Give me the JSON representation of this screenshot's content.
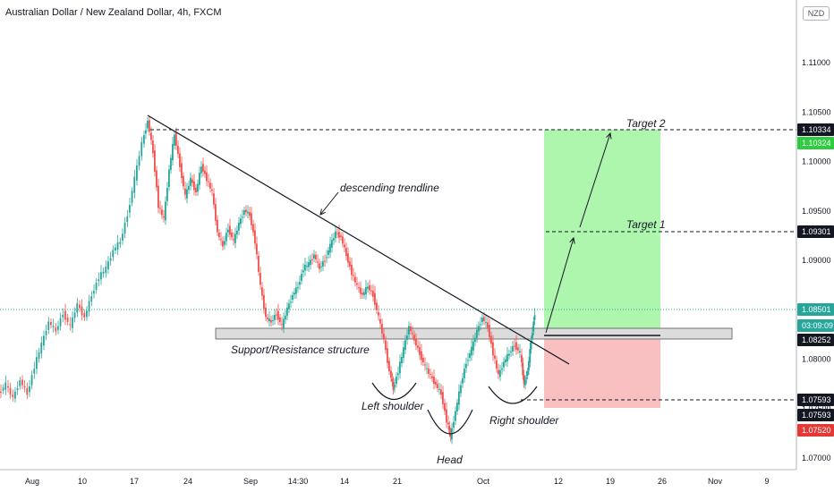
{
  "chart_data": {
    "type": "candlestick",
    "title": "Australian Dollar / New Zealand Dollar, 4h, FXCM",
    "currency": "NZD",
    "y_ticks": [
      "1.11000",
      "1.10500",
      "1.10000",
      "1.09500",
      "1.09000",
      "1.08500",
      "1.08000",
      "1.07500",
      "1.07000"
    ],
    "y_tick_values": [
      1.11,
      1.105,
      1.1,
      1.095,
      1.09,
      1.085,
      1.08,
      1.075,
      1.07
    ],
    "x_ticks": [
      "Aug",
      "10",
      "17",
      "24",
      "Sep",
      "14:30",
      "14",
      "21",
      "Oct",
      "12",
      "19",
      "26",
      "Nov",
      "9"
    ],
    "price_tags": [
      {
        "label": "1.10334",
        "bg": "#131722",
        "fg": "#ffffff"
      },
      {
        "label": "1.10324",
        "bg": "#2ecc40",
        "fg": "#ffffff"
      },
      {
        "label": "1.09301",
        "bg": "#131722",
        "fg": "#ffffff"
      },
      {
        "label": "1.08501",
        "bg": "#26a69a",
        "fg": "#ffffff"
      },
      {
        "label": "03:09:09",
        "bg": "#26a69a",
        "fg": "#ffffff"
      },
      {
        "label": "1.08252",
        "bg": "#131722",
        "fg": "#ffffff"
      },
      {
        "label": "1.07593",
        "bg": "#131722",
        "fg": "#ffffff"
      },
      {
        "label": "1.07593",
        "bg": "#131722",
        "fg": "#ffffff"
      },
      {
        "label": "1.07520",
        "bg": "#e53935",
        "fg": "#ffffff"
      }
    ],
    "levels": {
      "target2": 1.10334,
      "target1": 1.09301,
      "current": 1.08501,
      "entry": 1.08252,
      "stop": 1.07593
    },
    "annotations": [
      "Target 2",
      "Target 1",
      "descending trendline",
      "Support/Resistance structure",
      "Left shoulder",
      "Head",
      "Right shoulder"
    ],
    "colors": {
      "up": "#26a69a",
      "down": "#ef5350",
      "profit_zone": "#a5f4a5",
      "loss_zone": "#f7b9b9",
      "sr_band": "#d9d9d9"
    }
  }
}
